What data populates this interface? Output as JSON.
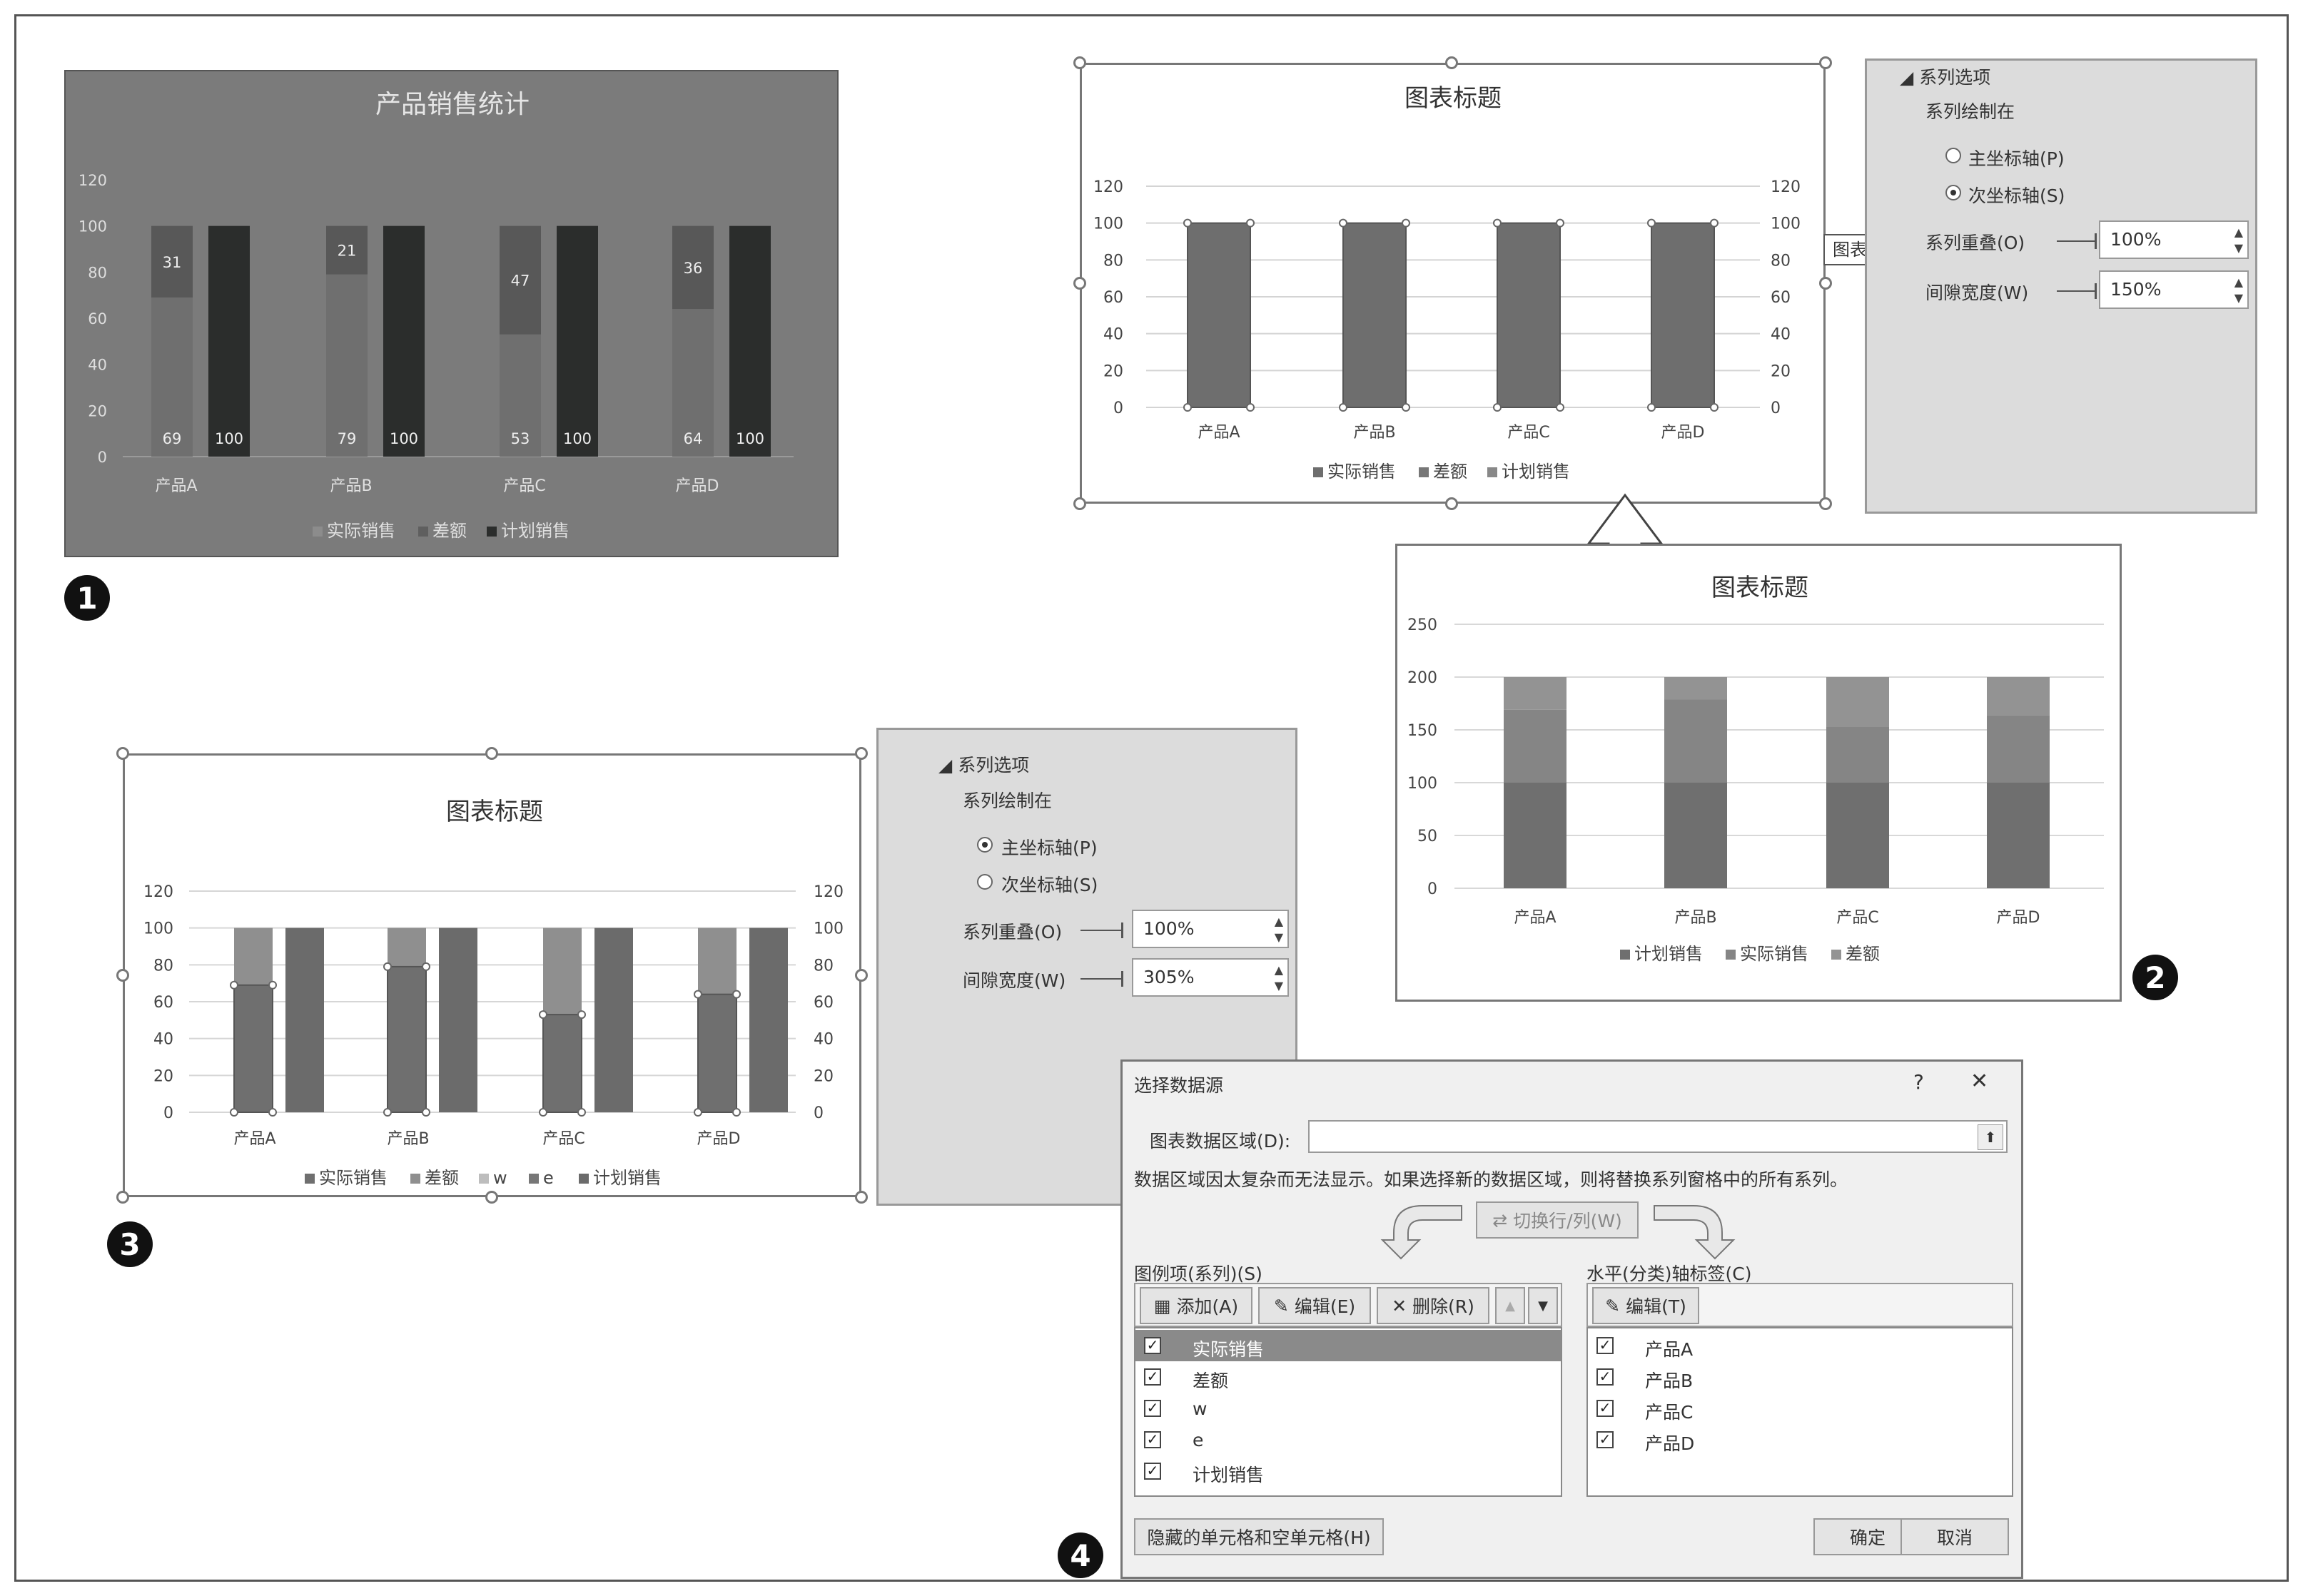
{
  "badges": [
    "1",
    "2",
    "3",
    "4"
  ],
  "panel1": {
    "title": "产品销售统计",
    "y_ticks": [
      "120",
      "100",
      "80",
      "60",
      "40",
      "20",
      "0"
    ],
    "legend": [
      "实际销售",
      "差额",
      "计划销售"
    ]
  },
  "panel2_top": {
    "title": "图表标题",
    "y_ticks": [
      "120",
      "100",
      "80",
      "60",
      "40",
      "20",
      "0"
    ],
    "legend": [
      "实际销售",
      "差额",
      "计划销售"
    ],
    "tooltip": "图表区",
    "pane": {
      "section": "系列选项",
      "plot_on": "系列绘制在",
      "primary": "主坐标轴(P)",
      "secondary": "次坐标轴(S)",
      "selected_axis": "secondary",
      "overlap_label": "系列重叠(O)",
      "overlap_value": "100%",
      "gap_label": "间隙宽度(W)",
      "gap_value": "150%"
    }
  },
  "panel2_bottom": {
    "title": "图表标题",
    "y_ticks": [
      "250",
      "200",
      "150",
      "100",
      "50",
      "0"
    ],
    "legend": [
      "计划销售",
      "实际销售",
      "差额"
    ]
  },
  "panel3": {
    "title": "图表标题",
    "y_ticks": [
      "120",
      "100",
      "80",
      "60",
      "40",
      "20",
      "0"
    ],
    "legend": [
      "实际销售",
      "差额",
      "w",
      "e",
      "计划销售"
    ],
    "pane": {
      "section": "系列选项",
      "plot_on": "系列绘制在",
      "primary": "主坐标轴(P)",
      "secondary": "次坐标轴(S)",
      "selected_axis": "primary",
      "overlap_label": "系列重叠(O)",
      "overlap_value": "100%",
      "gap_label": "间隙宽度(W)",
      "gap_value": "305%"
    }
  },
  "dialog": {
    "title": "选择数据源",
    "help": "?",
    "close": "✕",
    "range_label": "图表数据区域(D):",
    "range_value": "",
    "collapse_icon": "⬆",
    "message": "数据区域因太复杂而无法显示。如果选择新的数据区域，则将替换系列窗格中的所有系列。",
    "switch_button": "切换行/列(W)",
    "legend_header": "图例项(系列)(S)",
    "add": "添加(A)",
    "edit": "编辑(E)",
    "remove": "删除(R)",
    "up": "▲",
    "down": "▼",
    "series": [
      "实际销售",
      "差额",
      "w",
      "e",
      "计划销售"
    ],
    "axis_header": "水平(分类)轴标签(C)",
    "axis_edit": "编辑(T)",
    "categories": [
      "产品A",
      "产品B",
      "产品C",
      "产品D"
    ],
    "hidden_cells": "隐藏的单元格和空单元格(H)",
    "ok": "确定",
    "cancel": "取消",
    "check_mark": "✓"
  },
  "chart_data": [
    {
      "type": "bar",
      "title": "产品销售统计",
      "categories": [
        "产品A",
        "产品B",
        "产品C",
        "产品D"
      ],
      "ylim": [
        0,
        120
      ],
      "series": [
        {
          "name": "实际销售",
          "values": [
            69,
            79,
            53,
            64
          ]
        },
        {
          "name": "差额",
          "values": [
            31,
            21,
            47,
            36
          ]
        },
        {
          "name": "计划销售",
          "values": [
            100,
            100,
            100,
            100
          ]
        }
      ],
      "colors": {
        "实际销售": "#6f6f6f",
        "差额": "#585858",
        "计划销售": "#2b2d2c"
      },
      "background": "#7b7b7b",
      "legend": "bottom"
    },
    {
      "type": "bar",
      "title": "图表标题",
      "categories": [
        "产品A",
        "产品B",
        "产品C",
        "产品D"
      ],
      "ylim": [
        0,
        120
      ],
      "series": [
        {
          "name": "计划销售",
          "values": [
            100,
            100,
            100,
            100
          ]
        }
      ],
      "secondary_axis": true,
      "legend": "bottom"
    },
    {
      "type": "bar",
      "title": "图表标题",
      "categories": [
        "产品A",
        "产品B",
        "产品C",
        "产品D"
      ],
      "ylim": [
        0,
        250
      ],
      "stacked": true,
      "series": [
        {
          "name": "计划销售",
          "values": [
            100,
            100,
            100,
            100
          ]
        },
        {
          "name": "实际销售",
          "values": [
            69,
            79,
            53,
            64
          ]
        },
        {
          "name": "差额",
          "values": [
            31,
            21,
            47,
            36
          ]
        }
      ],
      "legend": "bottom"
    },
    {
      "type": "bar",
      "title": "图表标题",
      "categories": [
        "产品A",
        "产品B",
        "产品C",
        "产品D"
      ],
      "ylim": [
        0,
        120
      ],
      "series": [
        {
          "name": "实际销售",
          "values": [
            69,
            79,
            53,
            64
          ]
        },
        {
          "name": "差额",
          "values": [
            31,
            21,
            47,
            36
          ]
        },
        {
          "name": "计划销售",
          "values": [
            100,
            100,
            100,
            100
          ]
        }
      ],
      "legend": "bottom"
    }
  ]
}
